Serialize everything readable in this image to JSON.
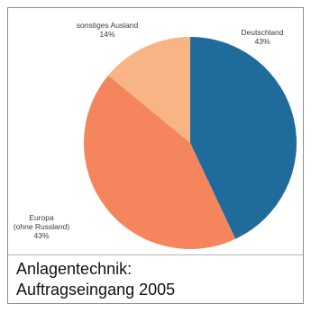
{
  "caption": {
    "line1": "Anlagentechnik:",
    "line2": "Auftragseingang 2005"
  },
  "chart_data": {
    "type": "pie",
    "title": "",
    "slices": [
      {
        "label": "Deutschland",
        "value": 43,
        "value_label": "43%",
        "color": "#1f6c9c"
      },
      {
        "label": "Europa\n(ohne Russland)",
        "value": 43,
        "value_label": "43%",
        "color": "#f5855c"
      },
      {
        "label": "sonstiges Ausland",
        "value": 14,
        "value_label": "14%",
        "color": "#f9b485"
      }
    ]
  }
}
